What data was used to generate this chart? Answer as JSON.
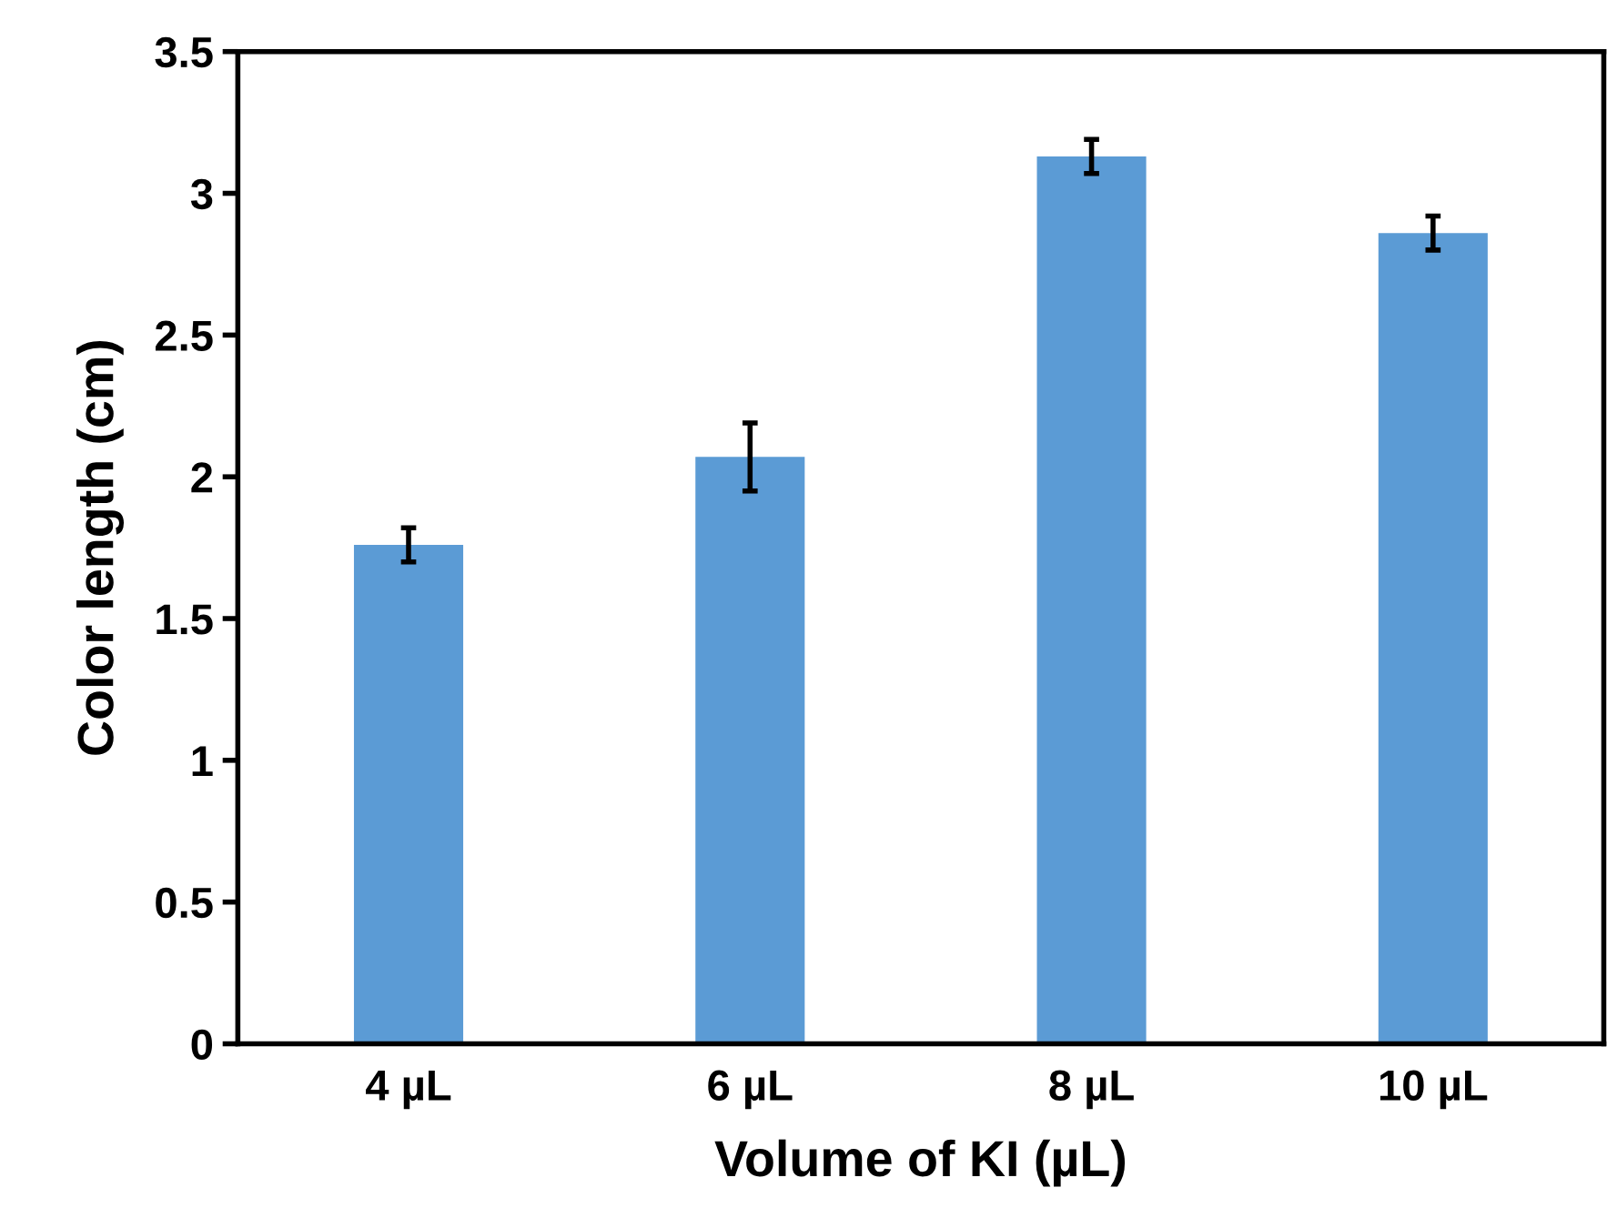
{
  "chart_data": {
    "type": "bar",
    "xlabel": "Volume of KI (µL)",
    "ylabel": "Color length (cm)",
    "categories": [
      "4 µL",
      "6 µL",
      "8 µL",
      "10 µL"
    ],
    "series": [
      {
        "color": "#5b9bd5",
        "values": [
          1.76,
          2.07,
          3.13,
          2.86
        ],
        "errors": [
          0.06,
          0.12,
          0.06,
          0.06
        ]
      }
    ],
    "ylim": [
      0,
      3.5
    ],
    "yticks": [
      0,
      {
        "value": 0.5,
        "label": "0.5"
      },
      1,
      {
        "value": 1.5,
        "label": "1.5"
      },
      2,
      {
        "value": 2.5,
        "label": "2.5"
      },
      3,
      {
        "value": 3.5,
        "label": "3.5"
      }
    ],
    "grid": false,
    "legend": false
  }
}
